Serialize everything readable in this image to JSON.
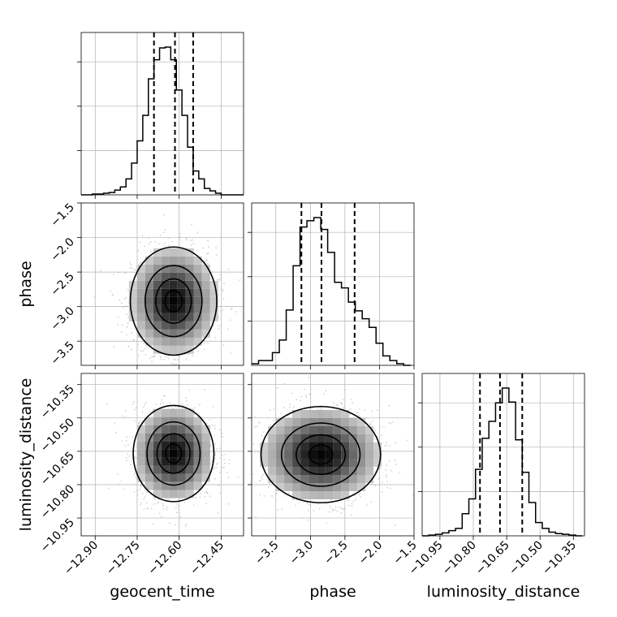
{
  "chart_data": {
    "type": "corner",
    "parameters": [
      "geocent_time",
      "phase",
      "luminosity_distance"
    ],
    "colors": {
      "line": "#000000",
      "grid": "#b0b0b0",
      "points": "#bdbdbd",
      "density_dark": "#000000",
      "density_light": "#ffffff"
    },
    "axes": {
      "geocent_time": {
        "range": [
          -12.95,
          -12.37
        ],
        "ticks": [
          -12.9,
          -12.75,
          -12.6,
          -12.45
        ],
        "tick_labels": [
          "−12.90",
          "−12.75",
          "−12.60",
          "−12.45"
        ],
        "xlabel": "geocent_time",
        "ylabel": ""
      },
      "phase": {
        "range": [
          -3.85,
          -1.5
        ],
        "ticks": [
          -3.5,
          -3.0,
          -2.5,
          -2.0,
          -1.5
        ],
        "tick_labels": [
          "−3.5",
          "−3.0",
          "−2.5",
          "−2.0",
          "−1.5"
        ],
        "xlabel": "phase",
        "ylabel": "phase"
      },
      "luminosity_distance": {
        "range": [
          -11.03,
          -10.3
        ],
        "ticks": [
          -10.95,
          -10.8,
          -10.65,
          -10.5,
          -10.35
        ],
        "tick_labels": [
          "−10.95",
          "−10.80",
          "−10.65",
          "−10.50",
          "−10.35"
        ],
        "xlabel": "luminosity_distance",
        "ylabel": "luminosity_distance"
      }
    },
    "histograms": [
      {
        "param": "geocent_time",
        "bin_edges": [
          -12.95,
          -12.93,
          -12.91,
          -12.89,
          -12.87,
          -12.85,
          -12.83,
          -12.81,
          -12.79,
          -12.77,
          -12.75,
          -12.73,
          -12.71,
          -12.69,
          -12.67,
          -12.65,
          -12.63,
          -12.61,
          -12.59,
          -12.57,
          -12.55,
          -12.53,
          -12.51,
          -12.49,
          -12.47,
          -12.45,
          -12.43,
          -12.41,
          -12.39,
          -12.37
        ],
        "counts": [
          0,
          0,
          1,
          1,
          2,
          3,
          6,
          10,
          20,
          40,
          68,
          100,
          146,
          170,
          185,
          186,
          170,
          132,
          100,
          60,
          30,
          20,
          8,
          5,
          2,
          0,
          0,
          0,
          0
        ],
        "quantiles": [
          -12.69,
          -12.615,
          -12.55
        ]
      },
      {
        "param": "phase",
        "bin_edges": [
          -3.85,
          -3.75,
          -3.65,
          -3.55,
          -3.45,
          -3.35,
          -3.25,
          -3.15,
          -3.05,
          -2.95,
          -2.85,
          -2.75,
          -2.65,
          -2.55,
          -2.45,
          -2.35,
          -2.25,
          -2.15,
          -2.05,
          -1.95,
          -1.85,
          -1.75,
          -1.65,
          -1.55
        ],
        "counts": [
          2,
          6,
          6,
          16,
          32,
          70,
          126,
          175,
          183,
          187,
          172,
          143,
          105,
          98,
          80,
          69,
          59,
          48,
          28,
          12,
          6,
          2,
          0
        ],
        "quantiles": [
          -3.13,
          -2.84,
          -2.36
        ]
      },
      {
        "param": "luminosity_distance",
        "bin_edges": [
          -11.03,
          -11.0,
          -10.97,
          -10.94,
          -10.91,
          -10.88,
          -10.85,
          -10.82,
          -10.79,
          -10.76,
          -10.73,
          -10.7,
          -10.67,
          -10.64,
          -10.61,
          -10.58,
          -10.55,
          -10.52,
          -10.49,
          -10.46,
          -10.43,
          -10.4,
          -10.37,
          -10.34,
          -10.31
        ],
        "counts": [
          0,
          1,
          2,
          4,
          7,
          10,
          30,
          50,
          90,
          132,
          155,
          180,
          200,
          181,
          130,
          86,
          45,
          18,
          10,
          5,
          3,
          2,
          1,
          0
        ],
        "quantiles": [
          -10.77,
          -10.68,
          -10.58
        ]
      }
    ],
    "pairs": [
      {
        "x": "geocent_time",
        "y": "phase",
        "center": [
          -12.62,
          -2.92
        ],
        "spread": [
          0.075,
          0.38
        ],
        "contour_levels": [
          0.12,
          0.4,
          0.7,
          0.92
        ]
      },
      {
        "x": "geocent_time",
        "y": "luminosity_distance",
        "center": [
          -12.62,
          -10.66
        ],
        "spread": [
          0.07,
          0.105
        ],
        "contour_levels": [
          0.12,
          0.4,
          0.7,
          0.92
        ]
      },
      {
        "x": "phase",
        "y": "luminosity_distance",
        "center": [
          -2.85,
          -10.665
        ],
        "spread": [
          0.42,
          0.105
        ],
        "contour_levels": [
          0.12,
          0.4,
          0.7,
          0.92
        ]
      }
    ]
  }
}
